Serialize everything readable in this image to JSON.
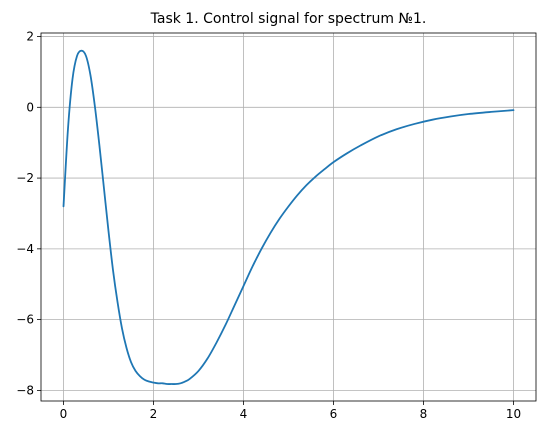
{
  "chart_data": {
    "type": "line",
    "title": "Task 1. Control signal for spectrum №1.",
    "xlabel": "",
    "ylabel": "",
    "xlim": [
      -0.5,
      10.5
    ],
    "ylim": [
      -8.3,
      2.1
    ],
    "grid": true,
    "x_ticks": [
      0,
      2,
      4,
      6,
      8,
      10
    ],
    "x_tick_labels": [
      "0",
      "2",
      "4",
      "6",
      "8",
      "10"
    ],
    "y_ticks": [
      2,
      0,
      -2,
      -4,
      -6,
      -8
    ],
    "y_tick_labels": [
      "2",
      "0",
      "−2",
      "−4",
      "−6",
      "−8"
    ],
    "series": [
      {
        "color": "#1f77b4",
        "x": [
          0,
          0.1,
          0.2,
          0.3,
          0.4,
          0.5,
          0.6,
          0.7,
          0.8,
          0.9,
          1.0,
          1.1,
          1.2,
          1.3,
          1.4,
          1.5,
          1.6,
          1.7,
          1.8,
          1.9,
          2.0,
          2.1,
          2.2,
          2.3,
          2.4,
          2.5,
          2.6,
          2.7,
          2.8,
          3.0,
          3.2,
          3.4,
          3.6,
          3.8,
          4.0,
          4.2,
          4.4,
          4.6,
          4.8,
          5.0,
          5.2,
          5.4,
          5.6,
          5.8,
          6.0,
          6.3,
          6.6,
          7.0,
          7.4,
          7.8,
          8.2,
          8.6,
          9.0,
          9.5,
          10.0
        ],
        "y": [
          -2.8,
          -0.6,
          0.8,
          1.45,
          1.6,
          1.45,
          0.9,
          0.0,
          -1.1,
          -2.3,
          -3.5,
          -4.6,
          -5.5,
          -6.25,
          -6.8,
          -7.2,
          -7.45,
          -7.6,
          -7.7,
          -7.75,
          -7.78,
          -7.8,
          -7.8,
          -7.82,
          -7.82,
          -7.82,
          -7.8,
          -7.75,
          -7.68,
          -7.45,
          -7.1,
          -6.65,
          -6.15,
          -5.6,
          -5.05,
          -4.5,
          -4.0,
          -3.55,
          -3.15,
          -2.8,
          -2.48,
          -2.2,
          -1.96,
          -1.75,
          -1.55,
          -1.3,
          -1.08,
          -0.82,
          -0.62,
          -0.47,
          -0.35,
          -0.26,
          -0.19,
          -0.13,
          -0.08
        ]
      }
    ]
  }
}
